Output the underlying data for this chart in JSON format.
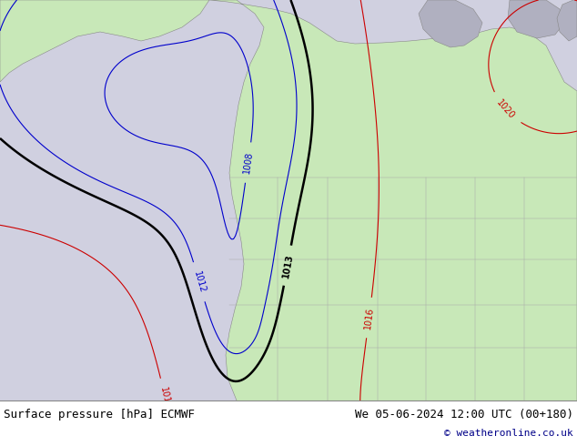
{
  "title": "",
  "bottom_left_text": "Surface pressure [hPa] ECMWF",
  "bottom_right_text": "We 05-06-2024 12:00 UTC (00+180)",
  "copyright_text": "© weatheronline.co.uk",
  "bg_color": "#d0d0e0",
  "land_color": "#c8e8b8",
  "ocean_color": "#d0d0e0",
  "coast_color": "#888888",
  "contour_black_color": "#000000",
  "contour_blue_color": "#0000cc",
  "contour_red_color": "#cc0000",
  "font_size_labels": 7,
  "font_size_bottom": 9,
  "font_size_copyright": 8,
  "bottom_bar_color": "#ffffff"
}
